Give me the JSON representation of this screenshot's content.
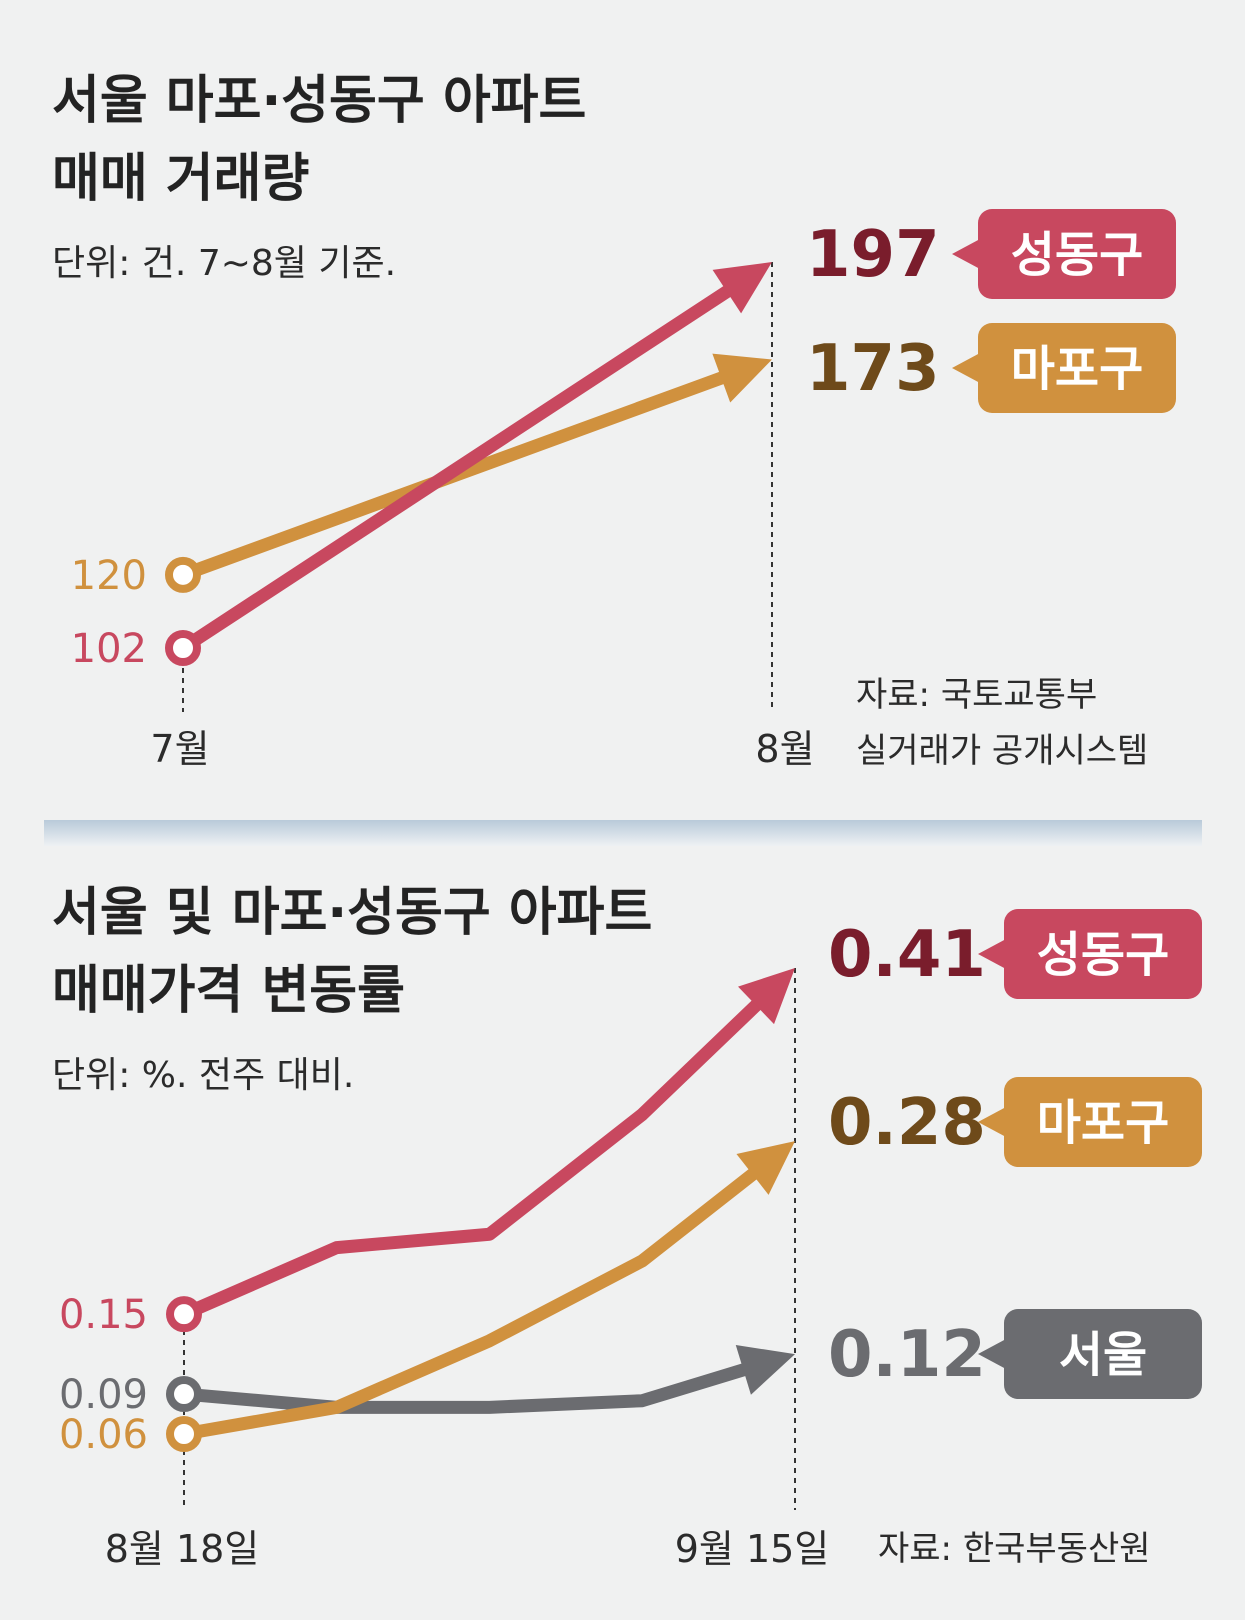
{
  "colors": {
    "seongdong": "#c8485f",
    "seongdong_value": "#7a1d2c",
    "mapo": "#d0913e",
    "mapo_value": "#6e4a1a",
    "seoul": "#6b6c70",
    "seoul_value": "#6b6c70",
    "divider": "#c8d6e2"
  },
  "charts": [
    {
      "title_lines": [
        "서울 마포·성동구 아파트",
        "매매 거래량"
      ],
      "unit": "단위: 건. 7~8월 기준.",
      "source_lines": [
        "자료: 국토교통부",
        "실거래가 공개시스템"
      ]
    },
    {
      "title_lines": [
        "서울 및 마포·성동구 아파트",
        "매매가격 변동률"
      ],
      "unit": "단위: %. 전주 대비.",
      "source_lines": [
        "자료: 한국부동산원"
      ]
    }
  ],
  "chart_data": [
    {
      "type": "line",
      "categories": [
        "7월",
        "8월"
      ],
      "series": [
        {
          "name": "성동구",
          "values": [
            102,
            197
          ],
          "start_label": "102",
          "end_label": "197",
          "color_key": "seongdong"
        },
        {
          "name": "마포구",
          "values": [
            120,
            173
          ],
          "start_label": "120",
          "end_label": "173",
          "color_key": "mapo"
        }
      ],
      "title": "서울 마포·성동구 아파트 매매 거래량",
      "xlabel": "",
      "ylabel": "",
      "ylim": [
        102,
        197
      ],
      "grid": false,
      "legend": "right"
    },
    {
      "type": "line",
      "categories": [
        "8월 18일",
        "",
        "",
        "",
        "9월 15일"
      ],
      "series": [
        {
          "name": "성동구",
          "values": [
            0.15,
            0.2,
            0.21,
            0.3,
            0.41
          ],
          "start_label": "0.15",
          "end_label": "0.41",
          "color_key": "seongdong"
        },
        {
          "name": "마포구",
          "values": [
            0.06,
            0.08,
            0.13,
            0.19,
            0.28
          ],
          "start_label": "0.06",
          "end_label": "0.28",
          "color_key": "mapo"
        },
        {
          "name": "서울",
          "values": [
            0.09,
            0.08,
            0.08,
            0.085,
            0.12
          ],
          "start_label": "0.09",
          "end_label": "0.12",
          "color_key": "seoul"
        }
      ],
      "title": "서울 및 마포·성동구 아파트 매매가격 변동률",
      "xlabel": "",
      "ylabel": "",
      "ylim": [
        0.06,
        0.41
      ],
      "grid": false,
      "legend": "right"
    }
  ]
}
